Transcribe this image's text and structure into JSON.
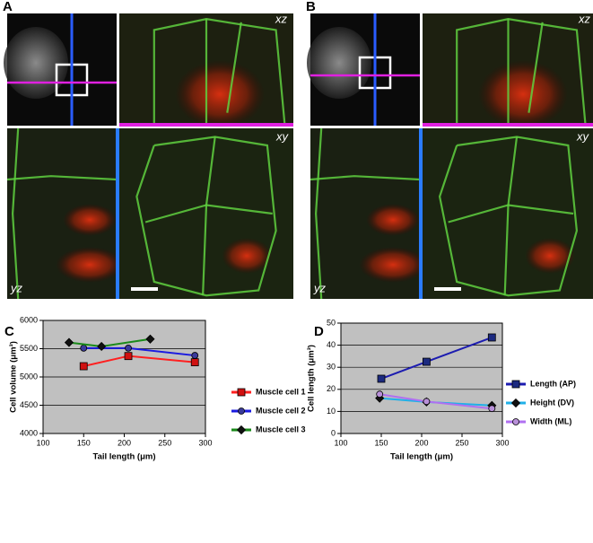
{
  "image_panels": [
    {
      "label": "A",
      "views": [
        "xz",
        "xy",
        "yz"
      ]
    },
    {
      "label": "B",
      "views": [
        "xz",
        "xy",
        "yz"
      ]
    }
  ],
  "chart_data": [
    {
      "type": "line",
      "label": "C",
      "xlabel": "Tail length (μm)",
      "ylabel": "Cell volume (μm³)",
      "xlim": [
        100,
        300
      ],
      "xticks": [
        100,
        150,
        200,
        250,
        300
      ],
      "ylim": [
        4000,
        6000
      ],
      "yticks": [
        4000,
        4500,
        5000,
        5500,
        6000
      ],
      "grid": true,
      "series": [
        {
          "name": "Muscle cell 1",
          "color": "#ff2020",
          "marker": "square",
          "marker_color": "#d01010",
          "x": [
            150,
            205,
            287
          ],
          "values": [
            5190,
            5370,
            5260
          ]
        },
        {
          "name": "Muscle cell 2",
          "color": "#1a1ae0",
          "marker": "circle",
          "marker_color": "#3a3a9a",
          "x": [
            150,
            205,
            287
          ],
          "values": [
            5510,
            5510,
            5380
          ]
        },
        {
          "name": "Muscle cell 3",
          "color": "#1a8a1a",
          "marker": "diamond",
          "marker_color": "#111111",
          "x": [
            132,
            172,
            232
          ],
          "values": [
            5610,
            5540,
            5670
          ]
        }
      ]
    },
    {
      "type": "line",
      "label": "D",
      "xlabel": "Tail length (μm)",
      "ylabel": "Cell length (μm³)",
      "xlim": [
        100,
        300
      ],
      "xticks": [
        100,
        150,
        200,
        250,
        300
      ],
      "ylim": [
        0,
        50
      ],
      "yticks": [
        0,
        10,
        20,
        30,
        40,
        50
      ],
      "grid": true,
      "series": [
        {
          "name": "Length (AP)",
          "color": "#1c1cb0",
          "marker": "square",
          "marker_color": "#1c2a80",
          "x": [
            150,
            206,
            287
          ],
          "values": [
            24.8,
            32.5,
            43.5
          ]
        },
        {
          "name": "Height (DV)",
          "color": "#20b0e8",
          "marker": "diamond",
          "marker_color": "#111111",
          "x": [
            148,
            206,
            287
          ],
          "values": [
            16,
            14.3,
            12.7
          ]
        },
        {
          "name": "Width (ML)",
          "color": "#b070f0",
          "marker": "circle",
          "marker_color": "#b890d8",
          "x": [
            148,
            206,
            287
          ],
          "values": [
            17.8,
            14.5,
            11.3
          ]
        }
      ]
    }
  ]
}
